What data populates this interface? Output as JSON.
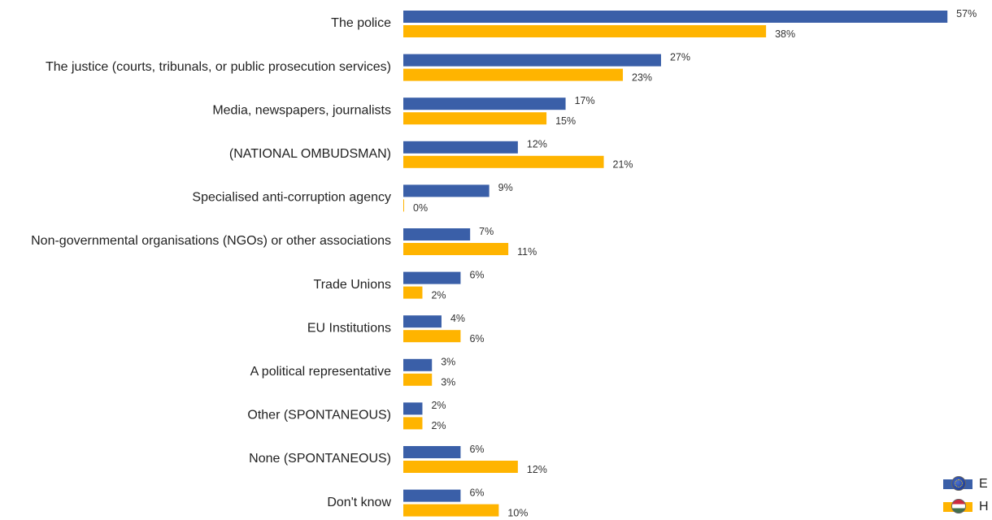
{
  "chart_data": {
    "type": "bar",
    "orientation": "horizontal",
    "categories": [
      "The police",
      "The justice (courts, tribunals, or public prosecution services)",
      "Media, newspapers, journalists",
      "(NATIONAL OMBUDSMAN)",
      "Specialised anti-corruption agency",
      "Non-governmental organisations (NGOs) or other associations",
      "Trade Unions",
      "EU Institutions",
      "A political representative",
      "Other (SPONTANEOUS)",
      "None (SPONTANEOUS)",
      "Don't know"
    ],
    "series": [
      {
        "values": [
          57,
          27,
          17,
          12,
          9,
          7,
          6,
          4,
          3,
          2,
          6,
          6
        ],
        "color": "#3a5fa8",
        "flag_icon": "eu-flag-icon"
      },
      {
        "values": [
          38,
          23,
          15,
          21,
          0,
          11,
          2,
          6,
          3,
          2,
          12,
          10
        ],
        "color": "#ffb400",
        "flag_icon": "hungary-flag-icon"
      }
    ],
    "value_suffix": "%",
    "xlim": [
      0,
      60
    ],
    "grid": false,
    "legend": {
      "placement": "bottom-right",
      "entries": [
        "E",
        "H"
      ]
    }
  }
}
